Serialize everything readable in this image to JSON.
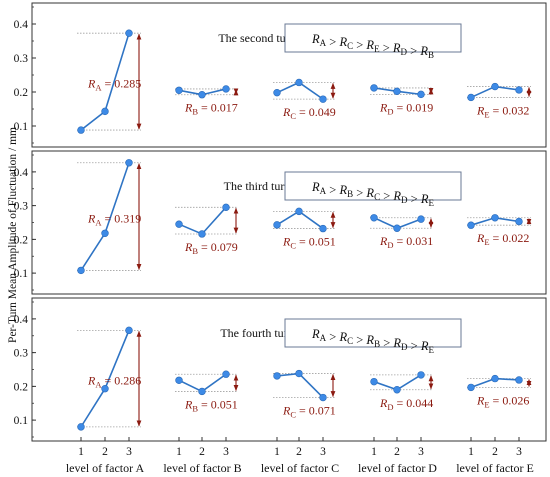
{
  "figure": {
    "ylabel": "Per-Turn Mean Amplitude of  Fluctuation / mm",
    "xlabels": [
      "level of factor A",
      "level of factor B",
      "level of factor C",
      "level of factor D",
      "level of factor E"
    ],
    "ticks_x": [
      "1",
      "2",
      "3"
    ]
  },
  "colors": {
    "line": "#2f74c4",
    "marker": "#3d8ae6",
    "range_arrow": "#8b1a10",
    "range_text": "#8b1a10",
    "frame": "#333333",
    "guide": "#a0a0a0"
  },
  "chart_data": [
    {
      "type": "line",
      "title": "The second turn",
      "ranking": {
        "base": "R",
        "order": [
          "A",
          "C",
          "E",
          "D",
          "B"
        ],
        "sep": " > "
      },
      "ylim": [
        0.05,
        0.45
      ],
      "yticks": [
        0.1,
        0.2,
        0.3,
        0.4
      ],
      "groups": [
        {
          "factor": "A",
          "values": [
            0.088,
            0.143,
            0.373
          ],
          "range_label": "R",
          "range_sub": "A",
          "range_value": "= 0.285"
        },
        {
          "factor": "B",
          "values": [
            0.205,
            0.192,
            0.209
          ],
          "range_label": "R",
          "range_sub": "B",
          "range_value": "= 0.017"
        },
        {
          "factor": "C",
          "values": [
            0.198,
            0.228,
            0.179
          ],
          "range_label": "R",
          "range_sub": "C",
          "range_value": "= 0.049"
        },
        {
          "factor": "D",
          "values": [
            0.212,
            0.202,
            0.193
          ],
          "range_label": "R",
          "range_sub": "D",
          "range_value": "= 0.019"
        },
        {
          "factor": "E",
          "values": [
            0.184,
            0.216,
            0.206
          ],
          "range_label": "R",
          "range_sub": "E",
          "range_value": "= 0.032"
        }
      ]
    },
    {
      "type": "line",
      "title": "The third turn",
      "ranking": {
        "base": "R",
        "order": [
          "A",
          "B",
          "C",
          "D",
          "E"
        ],
        "sep": " > "
      },
      "ylim": [
        0.05,
        0.45
      ],
      "yticks": [
        0.1,
        0.2,
        0.3,
        0.4
      ],
      "groups": [
        {
          "factor": "A",
          "values": [
            0.108,
            0.218,
            0.427
          ],
          "range_label": "R",
          "range_sub": "A",
          "range_value": "= 0.319"
        },
        {
          "factor": "B",
          "values": [
            0.245,
            0.216,
            0.295
          ],
          "range_label": "R",
          "range_sub": "B",
          "range_value": "= 0.079"
        },
        {
          "factor": "C",
          "values": [
            0.243,
            0.283,
            0.232
          ],
          "range_label": "R",
          "range_sub": "C",
          "range_value": "= 0.051"
        },
        {
          "factor": "D",
          "values": [
            0.264,
            0.233,
            0.26
          ],
          "range_label": "R",
          "range_sub": "D",
          "range_value": "= 0.031"
        },
        {
          "factor": "E",
          "values": [
            0.242,
            0.264,
            0.253
          ],
          "range_label": "R",
          "range_sub": "E",
          "range_value": "= 0.022"
        }
      ]
    },
    {
      "type": "line",
      "title": "The fourth turn",
      "ranking": {
        "base": "R",
        "order": [
          "A",
          "C",
          "B",
          "D",
          "E"
        ],
        "sep": " > "
      },
      "ylim": [
        0.05,
        0.45
      ],
      "yticks": [
        0.1,
        0.2,
        0.3,
        0.4
      ],
      "groups": [
        {
          "factor": "A",
          "values": [
            0.08,
            0.193,
            0.366
          ],
          "range_label": "R",
          "range_sub": "A",
          "range_value": "= 0.286"
        },
        {
          "factor": "B",
          "values": [
            0.218,
            0.185,
            0.236
          ],
          "range_label": "R",
          "range_sub": "B",
          "range_value": "= 0.051"
        },
        {
          "factor": "C",
          "values": [
            0.231,
            0.238,
            0.167
          ],
          "range_label": "R",
          "range_sub": "C",
          "range_value": "= 0.071"
        },
        {
          "factor": "D",
          "values": [
            0.214,
            0.19,
            0.234
          ],
          "range_label": "R",
          "range_sub": "D",
          "range_value": "= 0.044"
        },
        {
          "factor": "E",
          "values": [
            0.197,
            0.223,
            0.219
          ],
          "range_label": "R",
          "range_sub": "E",
          "range_value": "= 0.026"
        }
      ]
    }
  ]
}
